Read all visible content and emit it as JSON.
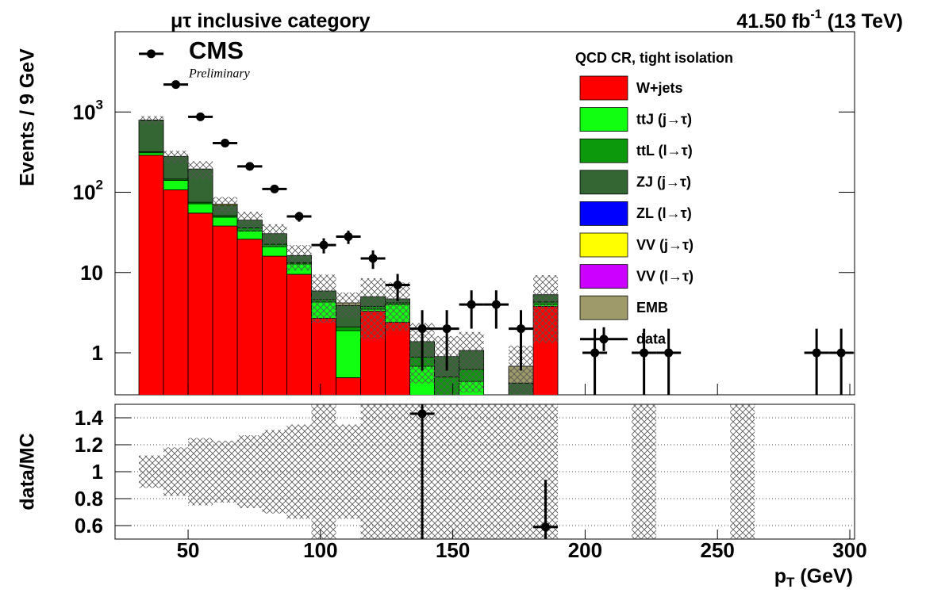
{
  "chart_data": [
    {
      "type": "stacked_histogram",
      "title": "μτ inclusive category",
      "lumi": "41.50 fb",
      "lumi_sup": "-1",
      "lumi_tail": " (13 TeV)",
      "cms_label": "CMS",
      "cms_extra": "Preliminary",
      "y_label": "Events / 9 GeV",
      "legend_title": "QCD CR, tight isolation",
      "log_y": true,
      "xlim": [
        22.4,
        301.8
      ],
      "ylim": [
        0.3,
        10000
      ],
      "xticks": [
        50,
        100,
        150,
        200,
        250,
        300
      ],
      "yticks": [
        1,
        10,
        {
          "value": 100,
          "label": "10",
          "sup": "2"
        },
        {
          "value": 1000,
          "label": "10",
          "sup": "3"
        }
      ],
      "bins": [
        31.4,
        40.7,
        50.0,
        59.3,
        68.6,
        78.0,
        87.3,
        96.6,
        105.9,
        115.2,
        124.5,
        133.8,
        143.1,
        152.4,
        161.7,
        171.1,
        180.4,
        189.7,
        199.0,
        208.3,
        217.6,
        226.9,
        236.2,
        245.5,
        254.8,
        264.1,
        273.5,
        282.8,
        292.1,
        301.4
      ],
      "series": [
        {
          "name": "W+jets",
          "color": "#ff0000",
          "values": [
            290,
            107,
            55,
            38,
            26,
            16,
            9.5,
            2.7,
            0.49,
            3.3,
            2.4,
            0,
            0,
            0,
            0,
            0,
            3.8,
            0,
            0,
            0,
            0,
            0,
            0,
            0,
            0,
            0,
            0,
            0,
            0
          ]
        },
        {
          "name": "ttJ (j→τ)",
          "color": "#11ff11",
          "values": [
            20,
            34,
            17,
            11,
            7,
            5,
            3.3,
            1.6,
            1.4,
            0.2,
            1.6,
            0.68,
            0,
            0.44,
            0,
            0,
            0.2,
            0,
            0,
            0,
            0,
            0,
            0,
            0,
            0,
            0,
            0,
            0,
            0
          ]
        },
        {
          "name": "ttL (l→τ)",
          "color": "#0c9a0c",
          "values": [
            10,
            5,
            3,
            2,
            3,
            1.5,
            0.5,
            0.3,
            0.2,
            0.3,
            0.2,
            0.2,
            0.5,
            0.18,
            0,
            0,
            0.3,
            0,
            0,
            0,
            0,
            0,
            0,
            0,
            0,
            0,
            0,
            0,
            0
          ]
        },
        {
          "name": "ZJ (j→τ)",
          "color": "#336633",
          "values": [
            470,
            134,
            120,
            18,
            9,
            8,
            3,
            1.3,
            1.8,
            1.2,
            0.5,
            0.5,
            0.4,
            0.45,
            0,
            0.42,
            1.0,
            0,
            0,
            0,
            0,
            0,
            0,
            0,
            0,
            0,
            0,
            0,
            0
          ]
        },
        {
          "name": "ZL (l→τ)",
          "color": "#0000ff",
          "values": [
            0,
            0,
            0,
            0,
            0,
            0,
            0,
            0,
            0,
            0,
            0,
            0,
            0,
            0,
            0,
            0,
            0,
            0,
            0,
            0,
            0,
            0,
            0,
            0,
            0,
            0,
            0,
            0,
            0
          ]
        },
        {
          "name": "VV (j→τ)",
          "color": "#ffff00",
          "values": [
            5,
            0,
            0,
            2,
            0,
            0,
            0,
            0,
            0,
            0,
            0,
            0,
            0,
            0,
            0,
            0,
            0,
            0,
            0,
            0,
            0,
            0,
            0,
            0,
            0,
            0,
            0,
            0,
            0
          ]
        },
        {
          "name": "VV (l→τ)",
          "color": "#cc00ff",
          "values": [
            0,
            0,
            0,
            0,
            0,
            0,
            0,
            0,
            0,
            0,
            0,
            0,
            0,
            0,
            0,
            0,
            0,
            0,
            0,
            0,
            0,
            0,
            0,
            0,
            0,
            0,
            0,
            0,
            0
          ]
        },
        {
          "name": "EMB",
          "color": "#9e9a6a",
          "values": [
            0,
            0,
            0,
            0,
            0,
            0,
            0,
            0,
            0.3,
            0,
            0,
            0,
            0,
            0,
            0,
            0.26,
            0,
            0,
            0,
            0,
            0,
            0,
            0,
            0,
            0,
            0,
            0,
            0,
            0
          ]
        }
      ],
      "uncertainty": [
        0.12,
        0.18,
        0.25,
        0.23,
        0.27,
        0.31,
        0.35,
        0.6,
        0.35,
        0.7,
        0.6,
        0.7,
        0.8,
        0.7,
        1,
        0.8,
        0.75,
        null,
        null,
        null,
        1,
        null,
        null,
        null,
        1,
        null,
        null,
        null,
        null
      ],
      "data": {
        "name": "data",
        "color": "#000000",
        "values": [
          5300,
          2200,
          870,
          410,
          210,
          110,
          50,
          22,
          28,
          15,
          7,
          2,
          2,
          4,
          4,
          2,
          null,
          null,
          1,
          null,
          1,
          1,
          null,
          null,
          null,
          null,
          null,
          1,
          1
        ],
        "errors": [
          73,
          47,
          30,
          20,
          14.5,
          10.5,
          7,
          4.7,
          5.3,
          3.9,
          2.6,
          1.4,
          1.4,
          2,
          2,
          1.4,
          null,
          null,
          1,
          null,
          1,
          1,
          null,
          null,
          null,
          null,
          null,
          1,
          1
        ]
      }
    },
    {
      "type": "ratio",
      "y_label": "data/MC",
      "x_label": "p",
      "x_label_sub": "T",
      "x_label_tail": " (GeV)",
      "xlim": [
        22.4,
        301.8
      ],
      "ylim": [
        0.5,
        1.5
      ],
      "xticks": [
        50,
        100,
        150,
        200,
        250,
        300
      ],
      "yticks": [
        0.6,
        0.8,
        1,
        1.2,
        1.4
      ],
      "grid": true,
      "values": [
        null,
        null,
        null,
        null,
        null,
        null,
        null,
        null,
        null,
        null,
        null,
        1.43,
        null,
        null,
        null,
        null,
        0.59,
        null,
        null,
        null,
        null,
        null,
        null,
        null,
        null,
        null,
        null,
        null,
        null
      ],
      "errors": [
        null,
        null,
        null,
        null,
        null,
        null,
        null,
        null,
        null,
        null,
        null,
        0.95,
        null,
        null,
        null,
        null,
        0.35,
        null,
        null,
        null,
        null,
        null,
        null,
        null,
        null,
        null,
        null,
        null,
        null
      ]
    }
  ]
}
